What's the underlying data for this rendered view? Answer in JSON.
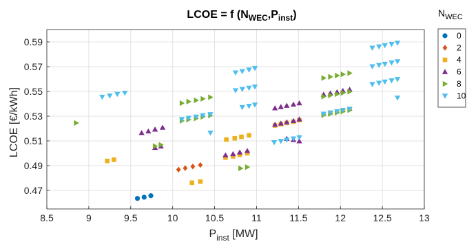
{
  "chart_data": {
    "type": "scatter",
    "title_main": "LCOE = f (N",
    "title_sub1": "WEC",
    "title_mid": ",P",
    "title_sub2": "inst",
    "title_end": ")",
    "xlabel_main": "P",
    "xlabel_sub": "inst",
    "xlabel_unit": " [MW]",
    "ylabel": "LCOE [€/kWh]",
    "xlim": [
      8.5,
      13
    ],
    "ylim": [
      0.455,
      0.6
    ],
    "xticks": [
      8.5,
      9,
      9.5,
      10,
      10.5,
      11,
      11.5,
      12,
      12.5,
      13
    ],
    "xtick_labels": [
      "8.5",
      "9",
      "9.5",
      "10",
      "10.5",
      "11",
      "11.5",
      "12",
      "12.5",
      "13"
    ],
    "yticks": [
      0.47,
      0.49,
      0.51,
      0.53,
      0.55,
      0.57,
      0.59
    ],
    "ytick_labels": [
      "0.47",
      "0.49",
      "0.51",
      "0.53",
      "0.55",
      "0.57",
      "0.59"
    ],
    "grid": true,
    "legend_title_main": "N",
    "legend_title_sub": "WEC",
    "legend_position": "outside-right",
    "series": [
      {
        "name": "0",
        "marker": "circle",
        "color": "#0072BD",
        "points": [
          [
            9.58,
            0.4635
          ],
          [
            9.66,
            0.4645
          ],
          [
            9.74,
            0.4657
          ]
        ]
      },
      {
        "name": "2",
        "marker": "diamond",
        "color": "#D95319",
        "points": [
          [
            10.07,
            0.4868
          ],
          [
            10.15,
            0.488
          ],
          [
            10.24,
            0.4893
          ],
          [
            10.33,
            0.4905
          ]
        ]
      },
      {
        "name": "4",
        "marker": "square",
        "color": "#EDB120",
        "points": [
          [
            9.22,
            0.4938
          ],
          [
            9.3,
            0.4948
          ],
          [
            10.23,
            0.4762
          ],
          [
            10.33,
            0.4771
          ],
          [
            10.63,
            0.4965
          ],
          [
            10.72,
            0.4975
          ],
          [
            10.8,
            0.4988
          ],
          [
            10.89,
            0.5
          ],
          [
            10.64,
            0.5111
          ],
          [
            10.74,
            0.5121
          ],
          [
            10.82,
            0.5133
          ],
          [
            10.91,
            0.5145
          ],
          [
            11.22,
            0.5225
          ],
          [
            11.29,
            0.5235
          ],
          [
            11.36,
            0.5245
          ],
          [
            11.44,
            0.5255
          ],
          [
            11.51,
            0.5268
          ],
          [
            11.8,
            0.5318
          ],
          [
            11.88,
            0.5328
          ],
          [
            11.96,
            0.5338
          ],
          [
            12.03,
            0.5348
          ],
          [
            12.11,
            0.5358
          ]
        ]
      },
      {
        "name": "6",
        "marker": "triangle-up",
        "color": "#7E2F8E",
        "points": [
          [
            9.63,
            0.5165
          ],
          [
            9.71,
            0.5178
          ],
          [
            9.79,
            0.5193
          ],
          [
            9.88,
            0.5208
          ],
          [
            9.79,
            0.5045
          ],
          [
            9.86,
            0.5057
          ],
          [
            10.63,
            0.4985
          ],
          [
            10.72,
            0.4995
          ],
          [
            10.8,
            0.5008
          ],
          [
            10.89,
            0.502
          ],
          [
            11.22,
            0.5365
          ],
          [
            11.29,
            0.5375
          ],
          [
            11.36,
            0.5385
          ],
          [
            11.44,
            0.5395
          ],
          [
            11.51,
            0.5405
          ],
          [
            11.22,
            0.5232
          ],
          [
            11.29,
            0.5242
          ],
          [
            11.36,
            0.5252
          ],
          [
            11.44,
            0.5262
          ],
          [
            11.51,
            0.5275
          ],
          [
            11.36,
            0.5118
          ],
          [
            11.44,
            0.5108
          ],
          [
            11.51,
            0.5098
          ],
          [
            11.8,
            0.5475
          ],
          [
            11.88,
            0.5485
          ],
          [
            11.96,
            0.5495
          ],
          [
            12.03,
            0.5505
          ],
          [
            12.11,
            0.5515
          ]
        ]
      },
      {
        "name": "8",
        "marker": "triangle-right",
        "color": "#77AC30",
        "points": [
          [
            8.85,
            0.5245
          ],
          [
            9.79,
            0.5058
          ],
          [
            9.86,
            0.5068
          ],
          [
            10.11,
            0.5405
          ],
          [
            10.19,
            0.5418
          ],
          [
            10.28,
            0.5428
          ],
          [
            10.36,
            0.544
          ],
          [
            10.45,
            0.5453
          ],
          [
            10.11,
            0.5262
          ],
          [
            10.19,
            0.5272
          ],
          [
            10.28,
            0.5282
          ],
          [
            10.36,
            0.5295
          ],
          [
            10.45,
            0.5305
          ],
          [
            10.81,
            0.4878
          ],
          [
            10.89,
            0.4888
          ],
          [
            11.8,
            0.5608
          ],
          [
            11.88,
            0.5618
          ],
          [
            11.96,
            0.5628
          ],
          [
            12.03,
            0.5638
          ],
          [
            12.11,
            0.5648
          ],
          [
            11.8,
            0.5458
          ],
          [
            11.88,
            0.5468
          ],
          [
            11.96,
            0.5478
          ],
          [
            12.03,
            0.5488
          ],
          [
            12.11,
            0.5498
          ],
          [
            11.8,
            0.5308
          ],
          [
            11.88,
            0.5318
          ],
          [
            11.96,
            0.5328
          ],
          [
            12.03,
            0.5338
          ],
          [
            12.11,
            0.5348
          ]
        ]
      },
      {
        "name": "10",
        "marker": "triangle-down",
        "color": "#4DBEEE",
        "points": [
          [
            9.16,
            0.5455
          ],
          [
            9.25,
            0.5465
          ],
          [
            9.34,
            0.5478
          ],
          [
            9.43,
            0.5488
          ],
          [
            10.11,
            0.5275
          ],
          [
            10.19,
            0.5285
          ],
          [
            10.28,
            0.5295
          ],
          [
            10.36,
            0.5305
          ],
          [
            10.45,
            0.5315
          ],
          [
            10.45,
            0.5165
          ],
          [
            10.75,
            0.5652
          ],
          [
            10.83,
            0.5662
          ],
          [
            10.91,
            0.5675
          ],
          [
            10.98,
            0.5688
          ],
          [
            10.75,
            0.5508
          ],
          [
            10.83,
            0.5518
          ],
          [
            10.91,
            0.5528
          ],
          [
            10.98,
            0.5538
          ],
          [
            10.83,
            0.5372
          ],
          [
            10.91,
            0.5382
          ],
          [
            10.98,
            0.5392
          ],
          [
            11.21,
            0.5088
          ],
          [
            11.29,
            0.5098
          ],
          [
            11.36,
            0.5108
          ],
          [
            11.44,
            0.5118
          ],
          [
            11.51,
            0.5128
          ],
          [
            11.8,
            0.5318
          ],
          [
            11.88,
            0.5328
          ],
          [
            11.96,
            0.5338
          ],
          [
            12.03,
            0.5348
          ],
          [
            12.11,
            0.5358
          ],
          [
            12.38,
            0.5852
          ],
          [
            12.46,
            0.5862
          ],
          [
            12.53,
            0.5872
          ],
          [
            12.61,
            0.5882
          ],
          [
            12.68,
            0.5892
          ],
          [
            12.38,
            0.5702
          ],
          [
            12.46,
            0.5712
          ],
          [
            12.53,
            0.5722
          ],
          [
            12.61,
            0.5732
          ],
          [
            12.68,
            0.5742
          ],
          [
            12.38,
            0.5558
          ],
          [
            12.46,
            0.5568
          ],
          [
            12.53,
            0.5578
          ],
          [
            12.61,
            0.5588
          ],
          [
            12.68,
            0.5598
          ],
          [
            12.68,
            0.5448
          ]
        ]
      }
    ]
  }
}
